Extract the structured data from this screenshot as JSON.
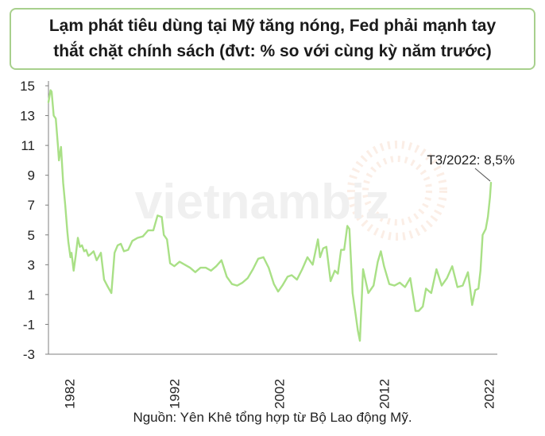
{
  "chart_data": {
    "type": "line",
    "title_lines": [
      "Lạm phát tiêu dùng tại Mỹ tăng nóng, Fed phải mạnh tay",
      "thắt chặt chính sách (đvt: % so với cùng kỳ năm trước)"
    ],
    "y_ticks": [
      "15",
      "13",
      "11",
      "9",
      "7",
      "5",
      "3",
      "1",
      "-1",
      "-3"
    ],
    "x_ticks": [
      "1982",
      "1992",
      "2002",
      "2012",
      "2022"
    ],
    "ylim": [
      -3,
      15
    ],
    "xlim": [
      1980.0,
      2022.5
    ],
    "annotation": "T3/2022: 8,5%",
    "source": "Nguồn: Yên Khê tổng hợp từ Bộ Lao động Mỹ.",
    "watermark": "vietnambiz",
    "line_color": "#a9e086",
    "series": [
      {
        "x": [
          1980.0,
          1980.2,
          1980.3,
          1980.5,
          1980.7,
          1980.9,
          1981.0,
          1981.2,
          1981.4,
          1981.6,
          1981.8,
          1981.9,
          1982.1,
          1982.2,
          1982.4,
          1982.6,
          1982.8,
          1983.0,
          1983.2,
          1983.4,
          1983.6,
          1983.8,
          1984.0,
          1984.3,
          1984.6,
          1985.0,
          1985.3,
          1985.6,
          1986.0,
          1986.3,
          1986.6,
          1986.9,
          1987.2,
          1987.6,
          1988.0,
          1988.5,
          1989.0,
          1989.5,
          1990.0,
          1990.4,
          1990.8,
          1991.0,
          1991.3,
          1991.6,
          1992.0,
          1992.5,
          1993.0,
          1993.5,
          1994.0,
          1994.5,
          1995.0,
          1995.5,
          1996.0,
          1996.5,
          1997.0,
          1997.5,
          1998.0,
          1998.5,
          1999.0,
          1999.5,
          2000.0,
          2000.5,
          2001.0,
          2001.5,
          2001.9,
          2002.3,
          2002.8,
          2003.2,
          2003.7,
          2004.2,
          2004.7,
          2005.2,
          2005.7,
          2005.9,
          2006.2,
          2006.5,
          2006.9,
          2007.3,
          2007.6,
          2007.9,
          2008.2,
          2008.5,
          2008.7,
          2009.0,
          2009.3,
          2009.5,
          2009.7,
          2010.0,
          2010.5,
          2011.0,
          2011.4,
          2011.7,
          2012.0,
          2012.5,
          2013.0,
          2013.5,
          2014.0,
          2014.5,
          2015.0,
          2015.3,
          2015.7,
          2016.0,
          2016.5,
          2017.0,
          2017.5,
          2018.0,
          2018.5,
          2019.0,
          2019.5,
          2020.0,
          2020.2,
          2020.4,
          2020.7,
          2021.0,
          2021.2,
          2021.4,
          2021.7,
          2021.9,
          2022.1,
          2022.2
        ],
        "y": [
          13.9,
          14.7,
          14.6,
          13.0,
          12.8,
          11.0,
          10.0,
          10.9,
          8.5,
          7.0,
          5.2,
          4.5,
          3.5,
          3.8,
          2.6,
          3.6,
          4.8,
          4.2,
          4.3,
          3.9,
          4.0,
          3.6,
          3.7,
          3.9,
          3.3,
          3.8,
          2.0,
          1.6,
          1.1,
          3.8,
          4.3,
          4.4,
          3.9,
          4.0,
          4.6,
          4.8,
          4.9,
          5.3,
          5.3,
          6.3,
          6.2,
          5.0,
          4.7,
          3.1,
          2.9,
          3.2,
          3.0,
          2.8,
          2.5,
          2.8,
          2.8,
          2.6,
          2.9,
          3.3,
          2.2,
          1.7,
          1.6,
          1.8,
          2.1,
          2.7,
          3.4,
          3.5,
          2.8,
          1.7,
          1.2,
          1.6,
          2.2,
          2.3,
          2.0,
          2.7,
          3.5,
          3.0,
          4.7,
          3.5,
          4.1,
          4.2,
          1.9,
          2.6,
          2.4,
          4.0,
          4.0,
          5.6,
          5.4,
          1.1,
          -0.4,
          -1.4,
          -2.1,
          2.7,
          1.1,
          1.6,
          3.2,
          3.9,
          2.9,
          1.7,
          1.6,
          1.8,
          1.5,
          2.1,
          -0.1,
          -0.1,
          0.2,
          1.4,
          1.1,
          2.7,
          1.6,
          2.1,
          2.9,
          1.5,
          1.6,
          2.5,
          1.5,
          0.3,
          1.3,
          1.4,
          2.6,
          5.0,
          5.4,
          6.2,
          7.5,
          8.5
        ]
      }
    ]
  }
}
